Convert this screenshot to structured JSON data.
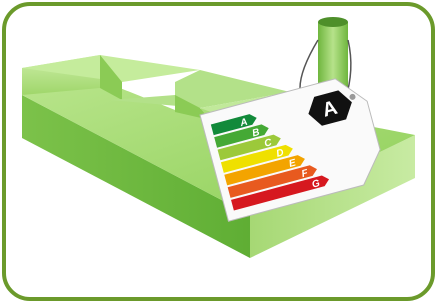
{
  "label": {
    "rating": "A",
    "classes": [
      "A",
      "B",
      "C",
      "D",
      "E",
      "F",
      "G"
    ]
  }
}
